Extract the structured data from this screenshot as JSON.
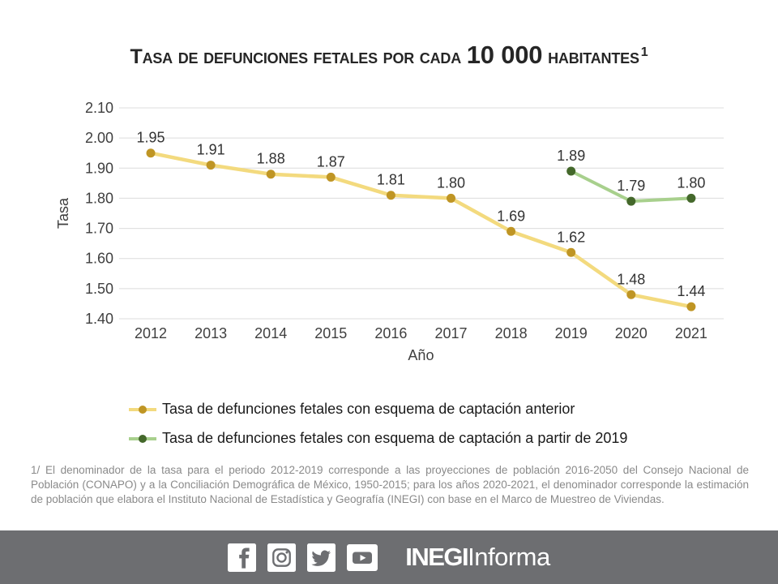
{
  "title": {
    "prefix": "Tasa de defunciones fetales por cada ",
    "big": "10 000",
    "suffix": " habitantes",
    "superscript": "1"
  },
  "chart_data": {
    "type": "line",
    "x": [
      "2012",
      "2013",
      "2014",
      "2015",
      "2016",
      "2017",
      "2018",
      "2019",
      "2020",
      "2021"
    ],
    "series": [
      {
        "name": "Tasa de defunciones fetales con esquema de captación anterior",
        "values": [
          1.95,
          1.91,
          1.88,
          1.87,
          1.81,
          1.8,
          1.69,
          1.62,
          1.48,
          1.44
        ],
        "line_color": "#f3da7e",
        "marker_color": "#bf9524"
      },
      {
        "name": "Tasa de defunciones fetales con esquema de captación a partir de 2019",
        "values": [
          null,
          null,
          null,
          null,
          null,
          null,
          null,
          1.89,
          1.79,
          1.8
        ],
        "line_color": "#a8d08d",
        "marker_color": "#44682b"
      }
    ],
    "xlabel": "Año",
    "ylabel": "Tasa",
    "ylim": [
      1.4,
      2.1
    ],
    "ytick_step": 0.1,
    "grid": true,
    "grid_color": "#dcdcdc",
    "legend_position": "bottom-left"
  },
  "footnote": "1/ El denominador  de la tasa para el periodo  2012-2019 corresponde  a las proyecciones de población 2016-2050 del Consejo Nacional de Población (CONAPO) y a la Conciliación Demográfica de México, 1950-2015;  para los años 2020-2021,  el denominador  corresponde  la estimación de población que elabora el Instituto  Nacional de Estadística y Geografía (INEGI) con base en el Marco de Muestreo de Viviendas.",
  "footer": {
    "bar_color": "#6d6e71",
    "icons": [
      "facebook-icon",
      "instagram-icon",
      "twitter-icon",
      "youtube-icon"
    ],
    "logo_bold": "INEGI",
    "logo_light": "Informa"
  }
}
